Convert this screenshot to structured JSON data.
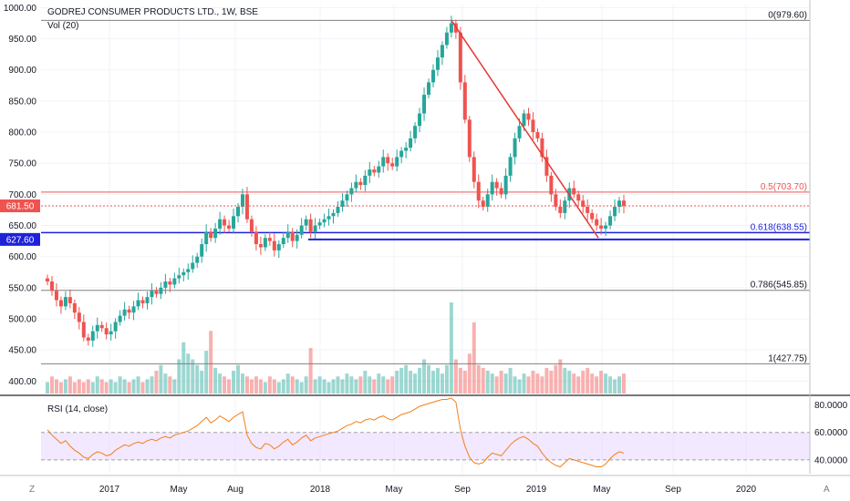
{
  "header": {
    "title": "GODREJ CONSUMER PRODUCTS LTD., 1W, BSE",
    "volume_label": "Vol (20)"
  },
  "rsi_panel": {
    "label": "RSI (14, close)"
  },
  "bottom_bar": {
    "left_button": "Z",
    "right_button": "A"
  },
  "colors": {
    "up": "#26a69a",
    "down": "#ef5350",
    "rsi_line": "#f57f17",
    "rsi_band": "#e9d8ff",
    "fib_line": "#808080",
    "trend_line": "#e53935",
    "support_line": "#1e22d9",
    "label_red": "#ef5350",
    "label_blue": "#1e22d9"
  },
  "chart_data": {
    "type": "candlestick",
    "title": "GODREJ CONSUMER PRODUCTS LTD., 1W, BSE",
    "y_ticks": [
      "1000.00",
      "950.00",
      "900.00",
      "850.00",
      "800.00",
      "750.00",
      "700.00",
      "650.00",
      "600.00",
      "550.00",
      "500.00",
      "450.00",
      "400.00"
    ],
    "ylim": [
      380,
      1005
    ],
    "x_ticks": [
      "2017",
      "May",
      "Aug",
      "2018",
      "May",
      "Sep",
      "2019",
      "May",
      "Sep",
      "2020"
    ],
    "last_price": "681.50",
    "fib_levels": [
      {
        "label": "0(979.60)",
        "value": 979.6
      },
      {
        "label": "0.5(703.70)",
        "value": 703.7
      },
      {
        "label": "0.618(638.55)",
        "value": 638.55
      },
      {
        "label": "0.786(545.85)",
        "value": 545.85
      },
      {
        "label": "1(427.75)",
        "value": 427.75
      }
    ],
    "support_level": {
      "label": "627.60",
      "value": 627.6
    },
    "trend_line": {
      "from": {
        "x": "Sep 2018",
        "y": 979.6
      },
      "to": {
        "x": "Jun 2019",
        "y": 630
      }
    },
    "weekly_closes": [
      560,
      545,
      530,
      520,
      535,
      525,
      510,
      495,
      470,
      465,
      480,
      490,
      485,
      475,
      480,
      495,
      505,
      515,
      510,
      520,
      530,
      525,
      535,
      545,
      540,
      550,
      560,
      555,
      565,
      570,
      575,
      580,
      590,
      600,
      620,
      640,
      630,
      645,
      660,
      650,
      645,
      665,
      680,
      700,
      660,
      640,
      620,
      615,
      630,
      625,
      610,
      620,
      630,
      640,
      625,
      635,
      650,
      660,
      640,
      650,
      655,
      660,
      665,
      670,
      680,
      690,
      700,
      710,
      720,
      715,
      730,
      740,
      735,
      745,
      760,
      750,
      745,
      760,
      770,
      775,
      790,
      810,
      830,
      860,
      880,
      900,
      920,
      940,
      960,
      975,
      960,
      880,
      820,
      760,
      720,
      690,
      680,
      700,
      720,
      710,
      700,
      730,
      760,
      790,
      810,
      830,
      820,
      800,
      790,
      760,
      730,
      700,
      680,
      670,
      690,
      710,
      700,
      690,
      680,
      670,
      660,
      650,
      645,
      650,
      665,
      680,
      690,
      681.5
    ],
    "volume": [
      4,
      6,
      5,
      4,
      5,
      6,
      4,
      5,
      4,
      5,
      4,
      6,
      5,
      4,
      5,
      4,
      6,
      5,
      4,
      5,
      6,
      4,
      5,
      6,
      8,
      10,
      7,
      6,
      5,
      12,
      18,
      14,
      12,
      10,
      8,
      15,
      22,
      9,
      7,
      6,
      5,
      8,
      10,
      7,
      6,
      5,
      6,
      5,
      4,
      6,
      5,
      4,
      5,
      7,
      6,
      5,
      4,
      6,
      16,
      5,
      6,
      5,
      4,
      5,
      6,
      5,
      7,
      6,
      5,
      6,
      8,
      6,
      5,
      7,
      6,
      5,
      6,
      8,
      9,
      10,
      8,
      7,
      9,
      12,
      10,
      8,
      9,
      7,
      10,
      32,
      12,
      9,
      8,
      14,
      25,
      10,
      9,
      8,
      7,
      6,
      8,
      7,
      9,
      6,
      5,
      7,
      6,
      8,
      7,
      6,
      9,
      8,
      10,
      12,
      9,
      8,
      7,
      6,
      8,
      9,
      7,
      6,
      8,
      7,
      6,
      5,
      6,
      7
    ],
    "rsi": {
      "ticks": [
        "80.0000",
        "60.0000",
        "40.0000"
      ],
      "ylim": [
        30,
        85
      ],
      "band": [
        40,
        60
      ],
      "values": [
        62,
        58,
        55,
        52,
        54,
        50,
        47,
        45,
        42,
        41,
        44,
        46,
        45,
        43,
        44,
        47,
        49,
        51,
        50,
        52,
        53,
        52,
        54,
        55,
        54,
        56,
        57,
        56,
        58,
        59,
        60,
        61,
        63,
        65,
        68,
        71,
        67,
        69,
        72,
        70,
        68,
        71,
        73,
        75,
        58,
        52,
        49,
        48,
        52,
        51,
        48,
        50,
        53,
        55,
        51,
        53,
        56,
        58,
        54,
        56,
        57,
        58,
        59,
        60,
        61,
        63,
        65,
        66,
        68,
        67,
        69,
        70,
        69,
        71,
        72,
        70,
        69,
        71,
        73,
        74,
        75,
        77,
        79,
        80,
        81,
        82,
        83,
        84,
        84,
        85,
        82,
        62,
        50,
        42,
        38,
        37,
        38,
        42,
        45,
        44,
        43,
        47,
        51,
        54,
        56,
        57,
        55,
        52,
        50,
        45,
        41,
        38,
        36,
        35,
        38,
        41,
        40,
        39,
        38,
        37,
        36,
        35,
        35,
        37,
        41,
        44,
        46,
        45
      ]
    }
  }
}
